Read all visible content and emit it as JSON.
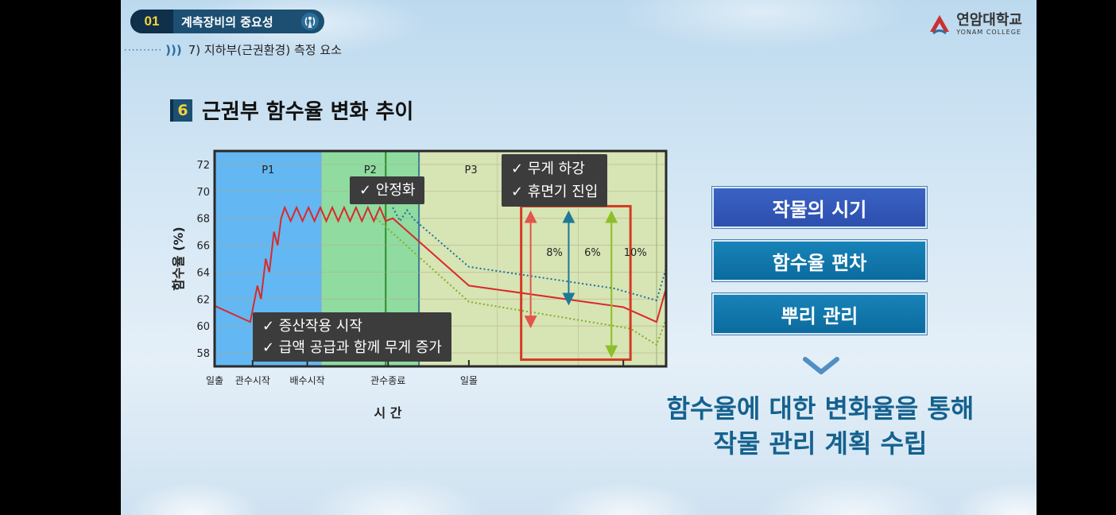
{
  "header": {
    "chapter_num": "01",
    "chapter_title": "계측장비의 중요성",
    "subtitle": "7) 지하부(근권환경) 측정 요소"
  },
  "logo": {
    "ko": "연암대학교",
    "en": "YONAM COLLEGE"
  },
  "section": {
    "num": "6",
    "title": "근권부 함수율 변화 추이"
  },
  "chart_data": {
    "type": "line",
    "ylabel": "함수율 (%)",
    "xlabel": "시    간",
    "ylim": [
      57,
      73
    ],
    "yticks": [
      58,
      60,
      62,
      64,
      66,
      68,
      70,
      72
    ],
    "x_tick_labels": [
      "일출",
      "관수시작",
      "배수시작",
      "관수종료",
      "일몰"
    ],
    "phases": [
      {
        "label": "P1",
        "color": "#63b7f2"
      },
      {
        "label": "P2",
        "color": "#8fdba0"
      },
      {
        "label": "P3",
        "color": "#d7e4b4"
      }
    ],
    "series": [
      {
        "color": "#d82a2a",
        "style": "solid",
        "points": [
          [
            0,
            61.5
          ],
          [
            1.5,
            60.3
          ],
          [
            1.8,
            63
          ],
          [
            1.95,
            62
          ],
          [
            2.15,
            65
          ],
          [
            2.3,
            64
          ],
          [
            2.5,
            67
          ],
          [
            2.65,
            66
          ],
          [
            2.8,
            68
          ],
          [
            2.95,
            68.8
          ],
          [
            3.2,
            67.8
          ],
          [
            3.45,
            68.8
          ],
          [
            3.7,
            67.8
          ],
          [
            3.95,
            68.8
          ],
          [
            4.2,
            67.8
          ],
          [
            4.45,
            68.8
          ],
          [
            4.7,
            67.8
          ],
          [
            4.95,
            68.8
          ],
          [
            5.2,
            67.8
          ],
          [
            5.45,
            68.8
          ],
          [
            5.7,
            67.8
          ],
          [
            5.95,
            68.8
          ],
          [
            6.2,
            67.8
          ],
          [
            6.45,
            68.8
          ],
          [
            6.7,
            67.8
          ],
          [
            6.95,
            68.8
          ],
          [
            7.2,
            67.8
          ],
          [
            7.5,
            68
          ],
          [
            10.7,
            63
          ],
          [
            17.2,
            61.4
          ],
          [
            18.6,
            60.3
          ],
          [
            19,
            62.8
          ]
        ]
      },
      {
        "color": "#1c6fa0",
        "style": "dotted",
        "points": [
          [
            7.5,
            68.8
          ],
          [
            7.8,
            67.8
          ],
          [
            8.1,
            68.6
          ],
          [
            8.4,
            67.9
          ],
          [
            10.7,
            64.4
          ],
          [
            16.8,
            62.8
          ],
          [
            18.6,
            61.9
          ],
          [
            19,
            64.3
          ]
        ]
      },
      {
        "color": "#7fb020",
        "style": "dotted",
        "points": [
          [
            6.8,
            68
          ],
          [
            10.7,
            61.8
          ],
          [
            17.5,
            59.8
          ],
          [
            18.6,
            58.6
          ],
          [
            19,
            60.5
          ]
        ]
      }
    ],
    "annotations": [
      {
        "label": "8%",
        "from": 68,
        "to": 60.3,
        "color": "#e2554a"
      },
      {
        "label": "6%",
        "from": 68,
        "to": 62,
        "color": "#1c7a96"
      },
      {
        "label": "10%",
        "from": 68,
        "to": 58.1,
        "color": "#8cbf2a"
      }
    ]
  },
  "callouts": {
    "stabilize": "✓ 안정화",
    "weight_drop": "✓ 무게 하강",
    "dormancy": "✓ 휴면기 진입",
    "transpire": "✓ 증산작용 시작",
    "supply": "✓ 급액 공급과 함께 무게 증가"
  },
  "side_boxes": [
    "작물의 시기",
    "함수율 편차",
    "뿌리 관리"
  ],
  "conclusion": [
    "함수율에 대한 변화율을 통해",
    "작물 관리 계획 수립"
  ],
  "colors": {
    "accent": "#14618e",
    "chapter_bg": "#1c4f72",
    "number_color": "#f4d23c"
  },
  "icons": [
    "signal-icon",
    "yonam-logo-icon",
    "chevron-down-icon"
  ]
}
